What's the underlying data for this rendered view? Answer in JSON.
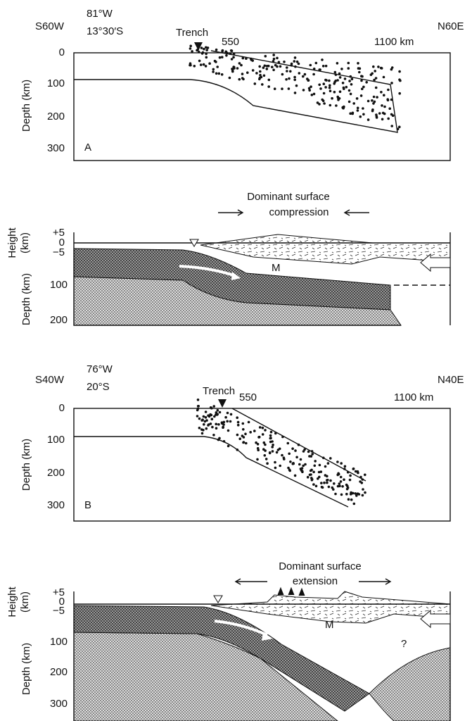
{
  "panels": [
    {
      "direction_left": "S60W",
      "longitude": "81°W",
      "latitude": "13°30′S",
      "trench": "Trench",
      "x_ticks": [
        "550",
        "1100 km"
      ],
      "direction_right": "N60E",
      "y_axis": "Depth (km)",
      "y_ticks": [
        "0",
        "100",
        "200",
        "300"
      ],
      "panel_label": "A"
    },
    {
      "title": "Dominant surface",
      "subtitle": "compression",
      "height_axis": [
        "Height",
        "(km)"
      ],
      "height_ticks": [
        "+5",
        "0",
        "−5"
      ],
      "depth_axis": "Depth (km)",
      "depth_ticks": [
        "100",
        "200"
      ],
      "moho": "M"
    },
    {
      "direction_left": "S40W",
      "longitude": "76°W",
      "latitude": "20°S",
      "trench": "Trench",
      "x_ticks": [
        "550",
        "1100 km"
      ],
      "direction_right": "N40E",
      "y_axis": "Depth (km)",
      "y_ticks": [
        "0",
        "100",
        "200",
        "300"
      ],
      "panel_label": "B"
    },
    {
      "title": "Dominant surface",
      "subtitle": "extension",
      "height_axis": [
        "Height",
        "(km)"
      ],
      "height_ticks": [
        "+5",
        "0",
        "−5"
      ],
      "depth_axis": "Depth (km)",
      "depth_ticks": [
        "100",
        "200",
        "300"
      ],
      "moho": "M",
      "question": "?"
    }
  ]
}
